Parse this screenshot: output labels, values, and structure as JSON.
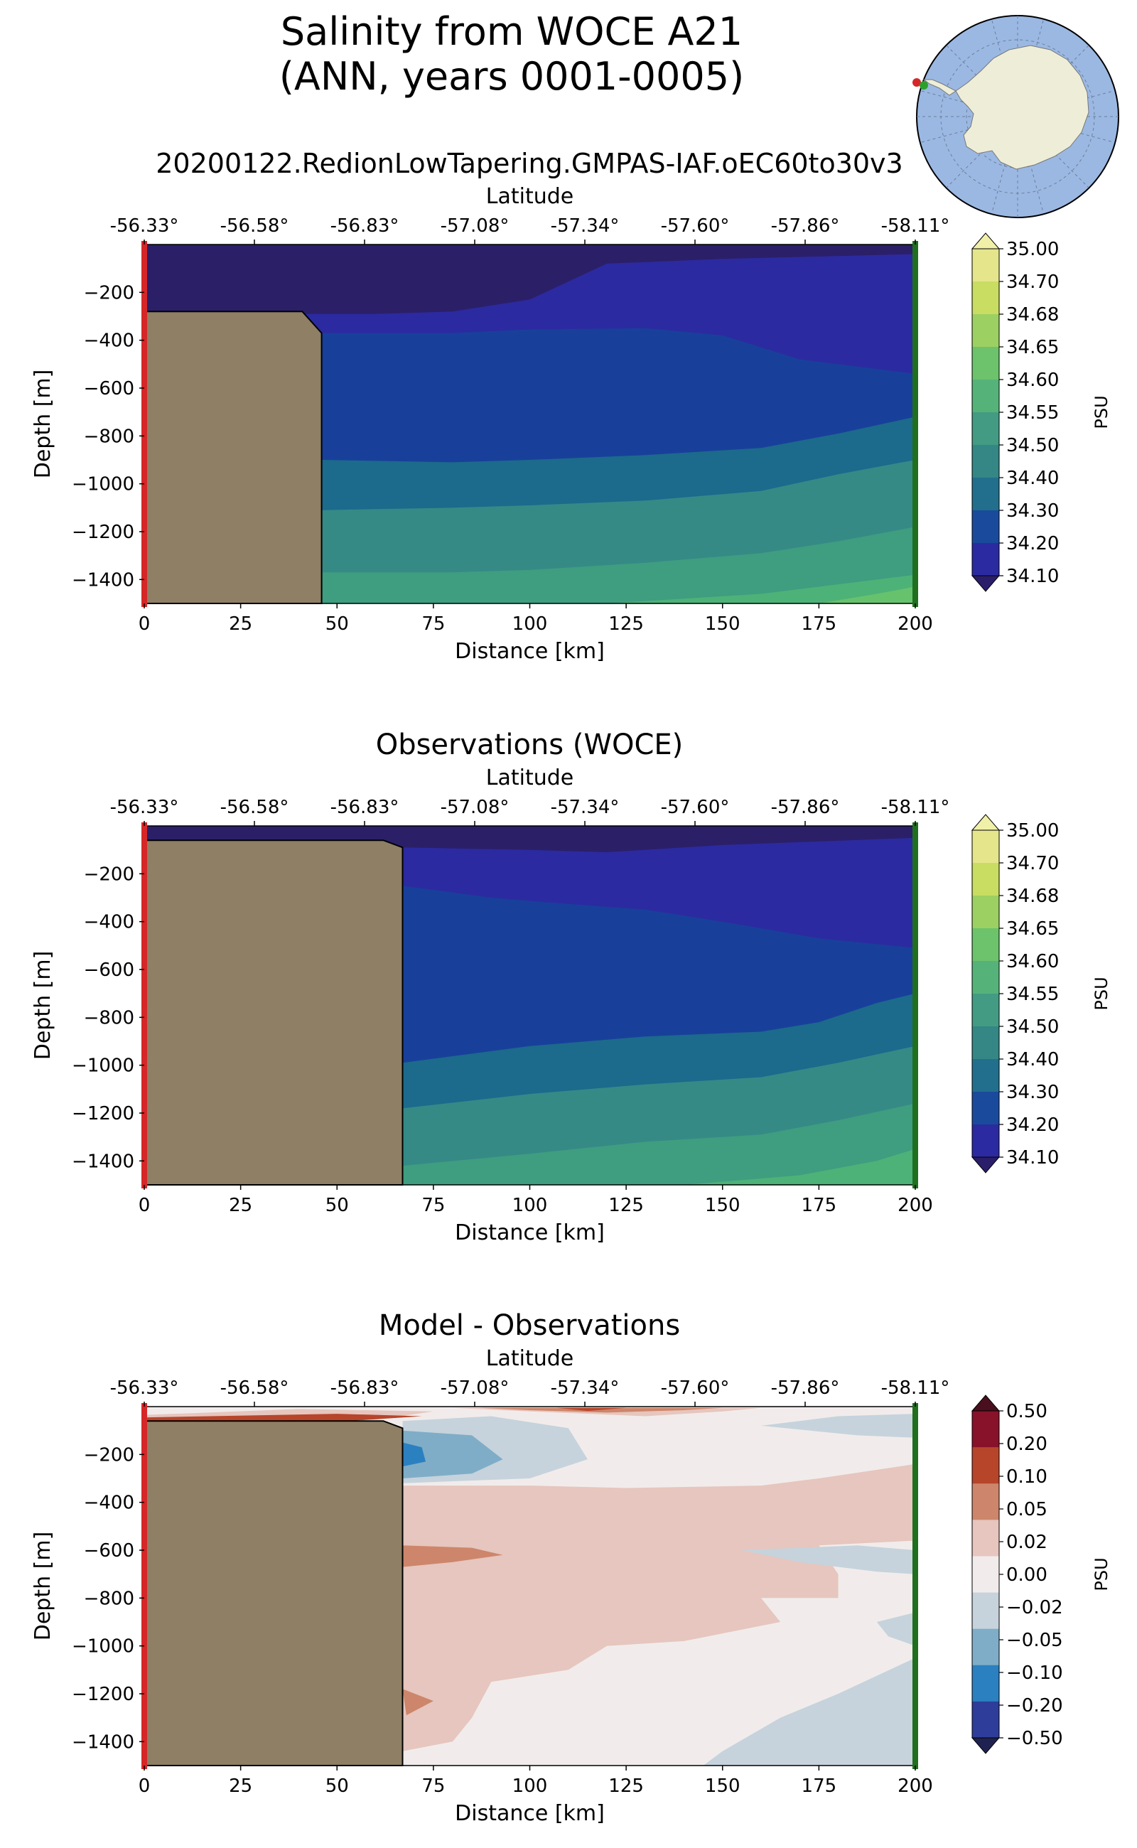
{
  "figure": {
    "title_line1": "Salinity from WOCE A21",
    "title_line2": "(ANN, years 0001-0005)"
  },
  "chart_data": [
    {
      "type": "contourf",
      "panel": "model",
      "title": "20200122.RedionLowTapering.GMPAS-IAF.oEC60to30v3",
      "xlabel": "Distance [km]",
      "ylabel": "Depth [m]",
      "top_axis_label": "Latitude",
      "xlim": [
        0,
        200
      ],
      "ylim": [
        -1500,
        0
      ],
      "x_ticks": [
        "0",
        "25",
        "50",
        "75",
        "100",
        "125",
        "150",
        "175",
        "200"
      ],
      "y_ticks": [
        "−200",
        "−400",
        "−600",
        "−800",
        "−1000",
        "−1200",
        "−1400"
      ],
      "latitude_ticks": [
        "-56.33°",
        "-56.58°",
        "-56.83°",
        "-57.08°",
        "-57.34°",
        "-57.60°",
        "-57.86°",
        "-58.11°"
      ],
      "bathymetry": [
        [
          0,
          -280
        ],
        [
          41,
          -280
        ],
        [
          46,
          -370
        ],
        [
          46,
          -1500
        ]
      ],
      "contour_boundaries": [
        {
          "level": "34.10",
          "points": [
            [
              0,
              -290
            ],
            [
              60,
              -290
            ],
            [
              80,
              -280
            ],
            [
              100,
              -230
            ],
            [
              120,
              -80
            ],
            [
              150,
              -60
            ],
            [
              200,
              -40
            ]
          ]
        },
        {
          "level": "34.20",
          "points": [
            [
              46,
              -370
            ],
            [
              80,
              -370
            ],
            [
              100,
              -355
            ],
            [
              130,
              -350
            ],
            [
              150,
              -380
            ],
            [
              170,
              -480
            ],
            [
              200,
              -540
            ]
          ]
        },
        {
          "level": "34.30",
          "points": [
            [
              46,
              -900
            ],
            [
              80,
              -910
            ],
            [
              100,
              -900
            ],
            [
              130,
              -880
            ],
            [
              160,
              -850
            ],
            [
              180,
              -790
            ],
            [
              200,
              -720
            ]
          ]
        },
        {
          "level": "34.40",
          "points": [
            [
              46,
              -1110
            ],
            [
              80,
              -1100
            ],
            [
              100,
              -1090
            ],
            [
              130,
              -1070
            ],
            [
              160,
              -1030
            ],
            [
              180,
              -960
            ],
            [
              200,
              -900
            ]
          ]
        },
        {
          "level": "34.50",
          "points": [
            [
              46,
              -1370
            ],
            [
              80,
              -1370
            ],
            [
              100,
              -1360
            ],
            [
              130,
              -1330
            ],
            [
              160,
              -1290
            ],
            [
              180,
              -1240
            ],
            [
              200,
              -1180
            ]
          ]
        },
        {
          "level": "34.55",
          "points": [
            [
              120,
              -1500
            ],
            [
              160,
              -1460
            ],
            [
              185,
              -1410
            ],
            [
              200,
              -1380
            ]
          ]
        },
        {
          "level": "34.60",
          "points": [
            [
              175,
              -1500
            ],
            [
              190,
              -1460
            ],
            [
              200,
              -1430
            ]
          ]
        }
      ],
      "colorbar": {
        "label": "PSU",
        "tick_labels": [
          "35.00",
          "34.70",
          "34.68",
          "34.65",
          "34.60",
          "34.55",
          "34.50",
          "34.40",
          "34.30",
          "34.20",
          "34.10"
        ]
      }
    },
    {
      "type": "contourf",
      "panel": "observations",
      "title": "Observations (WOCE)",
      "xlabel": "Distance [km]",
      "ylabel": "Depth [m]",
      "top_axis_label": "Latitude",
      "xlim": [
        0,
        200
      ],
      "ylim": [
        -1500,
        0
      ],
      "x_ticks": [
        "0",
        "25",
        "50",
        "75",
        "100",
        "125",
        "150",
        "175",
        "200"
      ],
      "y_ticks": [
        "−200",
        "−400",
        "−600",
        "−800",
        "−1000",
        "−1200",
        "−1400"
      ],
      "latitude_ticks": [
        "-56.33°",
        "-56.58°",
        "-56.83°",
        "-57.08°",
        "-57.34°",
        "-57.60°",
        "-57.86°",
        "-58.11°"
      ],
      "bathymetry": [
        [
          0,
          -60
        ],
        [
          62,
          -60
        ],
        [
          67,
          -90
        ],
        [
          67,
          -1500
        ]
      ],
      "contour_boundaries": [
        {
          "level": "34.10",
          "points": [
            [
              67,
              -90
            ],
            [
              100,
              -100
            ],
            [
              120,
              -110
            ],
            [
              150,
              -80
            ],
            [
              200,
              -50
            ]
          ]
        },
        {
          "level": "34.20",
          "points": [
            [
              67,
              -250
            ],
            [
              90,
              -300
            ],
            [
              105,
              -320
            ],
            [
              130,
              -350
            ],
            [
              150,
              -400
            ],
            [
              175,
              -470
            ],
            [
              200,
              -510
            ]
          ]
        },
        {
          "level": "34.30",
          "points": [
            [
              67,
              -990
            ],
            [
              100,
              -920
            ],
            [
              130,
              -880
            ],
            [
              160,
              -860
            ],
            [
              175,
              -820
            ],
            [
              190,
              -740
            ],
            [
              200,
              -700
            ]
          ]
        },
        {
          "level": "34.40",
          "points": [
            [
              67,
              -1180
            ],
            [
              100,
              -1120
            ],
            [
              130,
              -1080
            ],
            [
              160,
              -1050
            ],
            [
              180,
              -990
            ],
            [
              200,
              -920
            ]
          ]
        },
        {
          "level": "34.50",
          "points": [
            [
              67,
              -1420
            ],
            [
              100,
              -1370
            ],
            [
              130,
              -1320
            ],
            [
              160,
              -1290
            ],
            [
              180,
              -1230
            ],
            [
              200,
              -1160
            ]
          ]
        },
        {
          "level": "34.55",
          "points": [
            [
              140,
              -1500
            ],
            [
              170,
              -1460
            ],
            [
              190,
              -1400
            ],
            [
              200,
              -1350
            ]
          ]
        }
      ],
      "colorbar": {
        "label": "PSU",
        "tick_labels": [
          "35.00",
          "34.70",
          "34.68",
          "34.65",
          "34.60",
          "34.55",
          "34.50",
          "34.40",
          "34.30",
          "34.20",
          "34.10"
        ]
      }
    },
    {
      "type": "contourf",
      "panel": "bias",
      "title": "Model - Observations",
      "xlabel": "Distance [km]",
      "ylabel": "Depth [m]",
      "top_axis_label": "Latitude",
      "xlim": [
        0,
        200
      ],
      "ylim": [
        -1500,
        0
      ],
      "x_ticks": [
        "0",
        "25",
        "50",
        "75",
        "100",
        "125",
        "150",
        "175",
        "200"
      ],
      "y_ticks": [
        "−200",
        "−400",
        "−600",
        "−800",
        "−1000",
        "−1200",
        "−1400"
      ],
      "latitude_ticks": [
        "-56.33°",
        "-56.58°",
        "-56.83°",
        "-57.08°",
        "-57.34°",
        "-57.60°",
        "-57.86°",
        "-58.11°"
      ],
      "bathymetry": [
        [
          0,
          -60
        ],
        [
          62,
          -60
        ],
        [
          67,
          -90
        ],
        [
          67,
          -1500
        ]
      ],
      "anomaly_regions": [
        {
          "level": "0.02 to 0.05",
          "points": [
            [
              0,
              -55
            ],
            [
              0,
              -35
            ],
            [
              40,
              -10
            ],
            [
              75,
              -20
            ],
            [
              60,
              -55
            ]
          ]
        },
        {
          "level": "0.10 to 0.20",
          "points": [
            [
              0,
              -58
            ],
            [
              0,
              -45
            ],
            [
              50,
              -30
            ],
            [
              72,
              -40
            ],
            [
              55,
              -58
            ]
          ]
        },
        {
          "level": "0.02 to 0.05",
          "points": [
            [
              80,
              -5
            ],
            [
              100,
              -20
            ],
            [
              130,
              -40
            ],
            [
              150,
              -20
            ],
            [
              160,
              -5
            ]
          ]
        },
        {
          "level": "0.05 to 0.10",
          "points": [
            [
              87,
              -5
            ],
            [
              100,
              -15
            ],
            [
              120,
              -25
            ],
            [
              140,
              -15
            ],
            [
              150,
              -5
            ]
          ]
        },
        {
          "level": "0.10 to 0.20",
          "points": [
            [
              107,
              -5
            ],
            [
              115,
              -18
            ],
            [
              125,
              -5
            ]
          ]
        },
        {
          "level": "-0.02 to -0.05",
          "points": [
            [
              67,
              -60
            ],
            [
              90,
              -40
            ],
            [
              110,
              -90
            ],
            [
              115,
              -220
            ],
            [
              100,
              -300
            ],
            [
              67,
              -320
            ]
          ]
        },
        {
          "level": "-0.05 to -0.10",
          "points": [
            [
              67,
              -100
            ],
            [
              85,
              -120
            ],
            [
              93,
              -220
            ],
            [
              85,
              -280
            ],
            [
              67,
              -300
            ]
          ]
        },
        {
          "level": "-0.10 to -0.20",
          "points": [
            [
              67,
              -150
            ],
            [
              72,
              -170
            ],
            [
              73,
              -230
            ],
            [
              67,
              -250
            ]
          ]
        },
        {
          "level": "0.02 to 0.05",
          "points": [
            [
              67,
              -330
            ],
            [
              100,
              -330
            ],
            [
              125,
              -340
            ],
            [
              160,
              -330
            ],
            [
              175,
              -300
            ],
            [
              200,
              -240
            ],
            [
              200,
              -560
            ],
            [
              175,
              -580
            ],
            [
              180,
              -700
            ],
            [
              180,
              -800
            ],
            [
              160,
              -800
            ],
            [
              165,
              -900
            ],
            [
              140,
              -980
            ],
            [
              120,
              -1000
            ],
            [
              110,
              -1100
            ],
            [
              90,
              -1150
            ],
            [
              85,
              -1300
            ],
            [
              80,
              -1400
            ],
            [
              67,
              -1440
            ]
          ]
        },
        {
          "level": "0.05 to 0.10",
          "points": [
            [
              67,
              -580
            ],
            [
              85,
              -590
            ],
            [
              93,
              -620
            ],
            [
              80,
              -650
            ],
            [
              67,
              -670
            ]
          ]
        },
        {
          "level": "0.05 to 0.10",
          "points": [
            [
              67,
              -1180
            ],
            [
              75,
              -1230
            ],
            [
              68,
              -1290
            ]
          ]
        },
        {
          "level": "-0.02 to -0.05",
          "points": [
            [
              160,
              -80
            ],
            [
              180,
              -40
            ],
            [
              200,
              -30
            ],
            [
              200,
              -130
            ],
            [
              185,
              -120
            ]
          ]
        },
        {
          "level": "-0.02 to -0.05",
          "points": [
            [
              155,
              -600
            ],
            [
              185,
              -580
            ],
            [
              200,
              -600
            ],
            [
              200,
              -700
            ],
            [
              190,
              -690
            ],
            [
              170,
              -650
            ]
          ]
        },
        {
          "level": "-0.02 to -0.05",
          "points": [
            [
              190,
              -900
            ],
            [
              200,
              -860
            ],
            [
              200,
              -1000
            ],
            [
              193,
              -960
            ]
          ]
        },
        {
          "level": "-0.02 to -0.05",
          "points": [
            [
              150,
              -1440
            ],
            [
              165,
              -1300
            ],
            [
              180,
              -1200
            ],
            [
              200,
              -1050
            ],
            [
              200,
              -1500
            ],
            [
              145,
              -1500
            ]
          ]
        }
      ],
      "colorbar": {
        "label": "PSU",
        "tick_labels": [
          "0.50",
          "0.20",
          "0.10",
          "0.05",
          "0.02",
          "0.00",
          "−0.02",
          "−0.05",
          "−0.10",
          "−0.20",
          "−0.50"
        ]
      }
    }
  ]
}
